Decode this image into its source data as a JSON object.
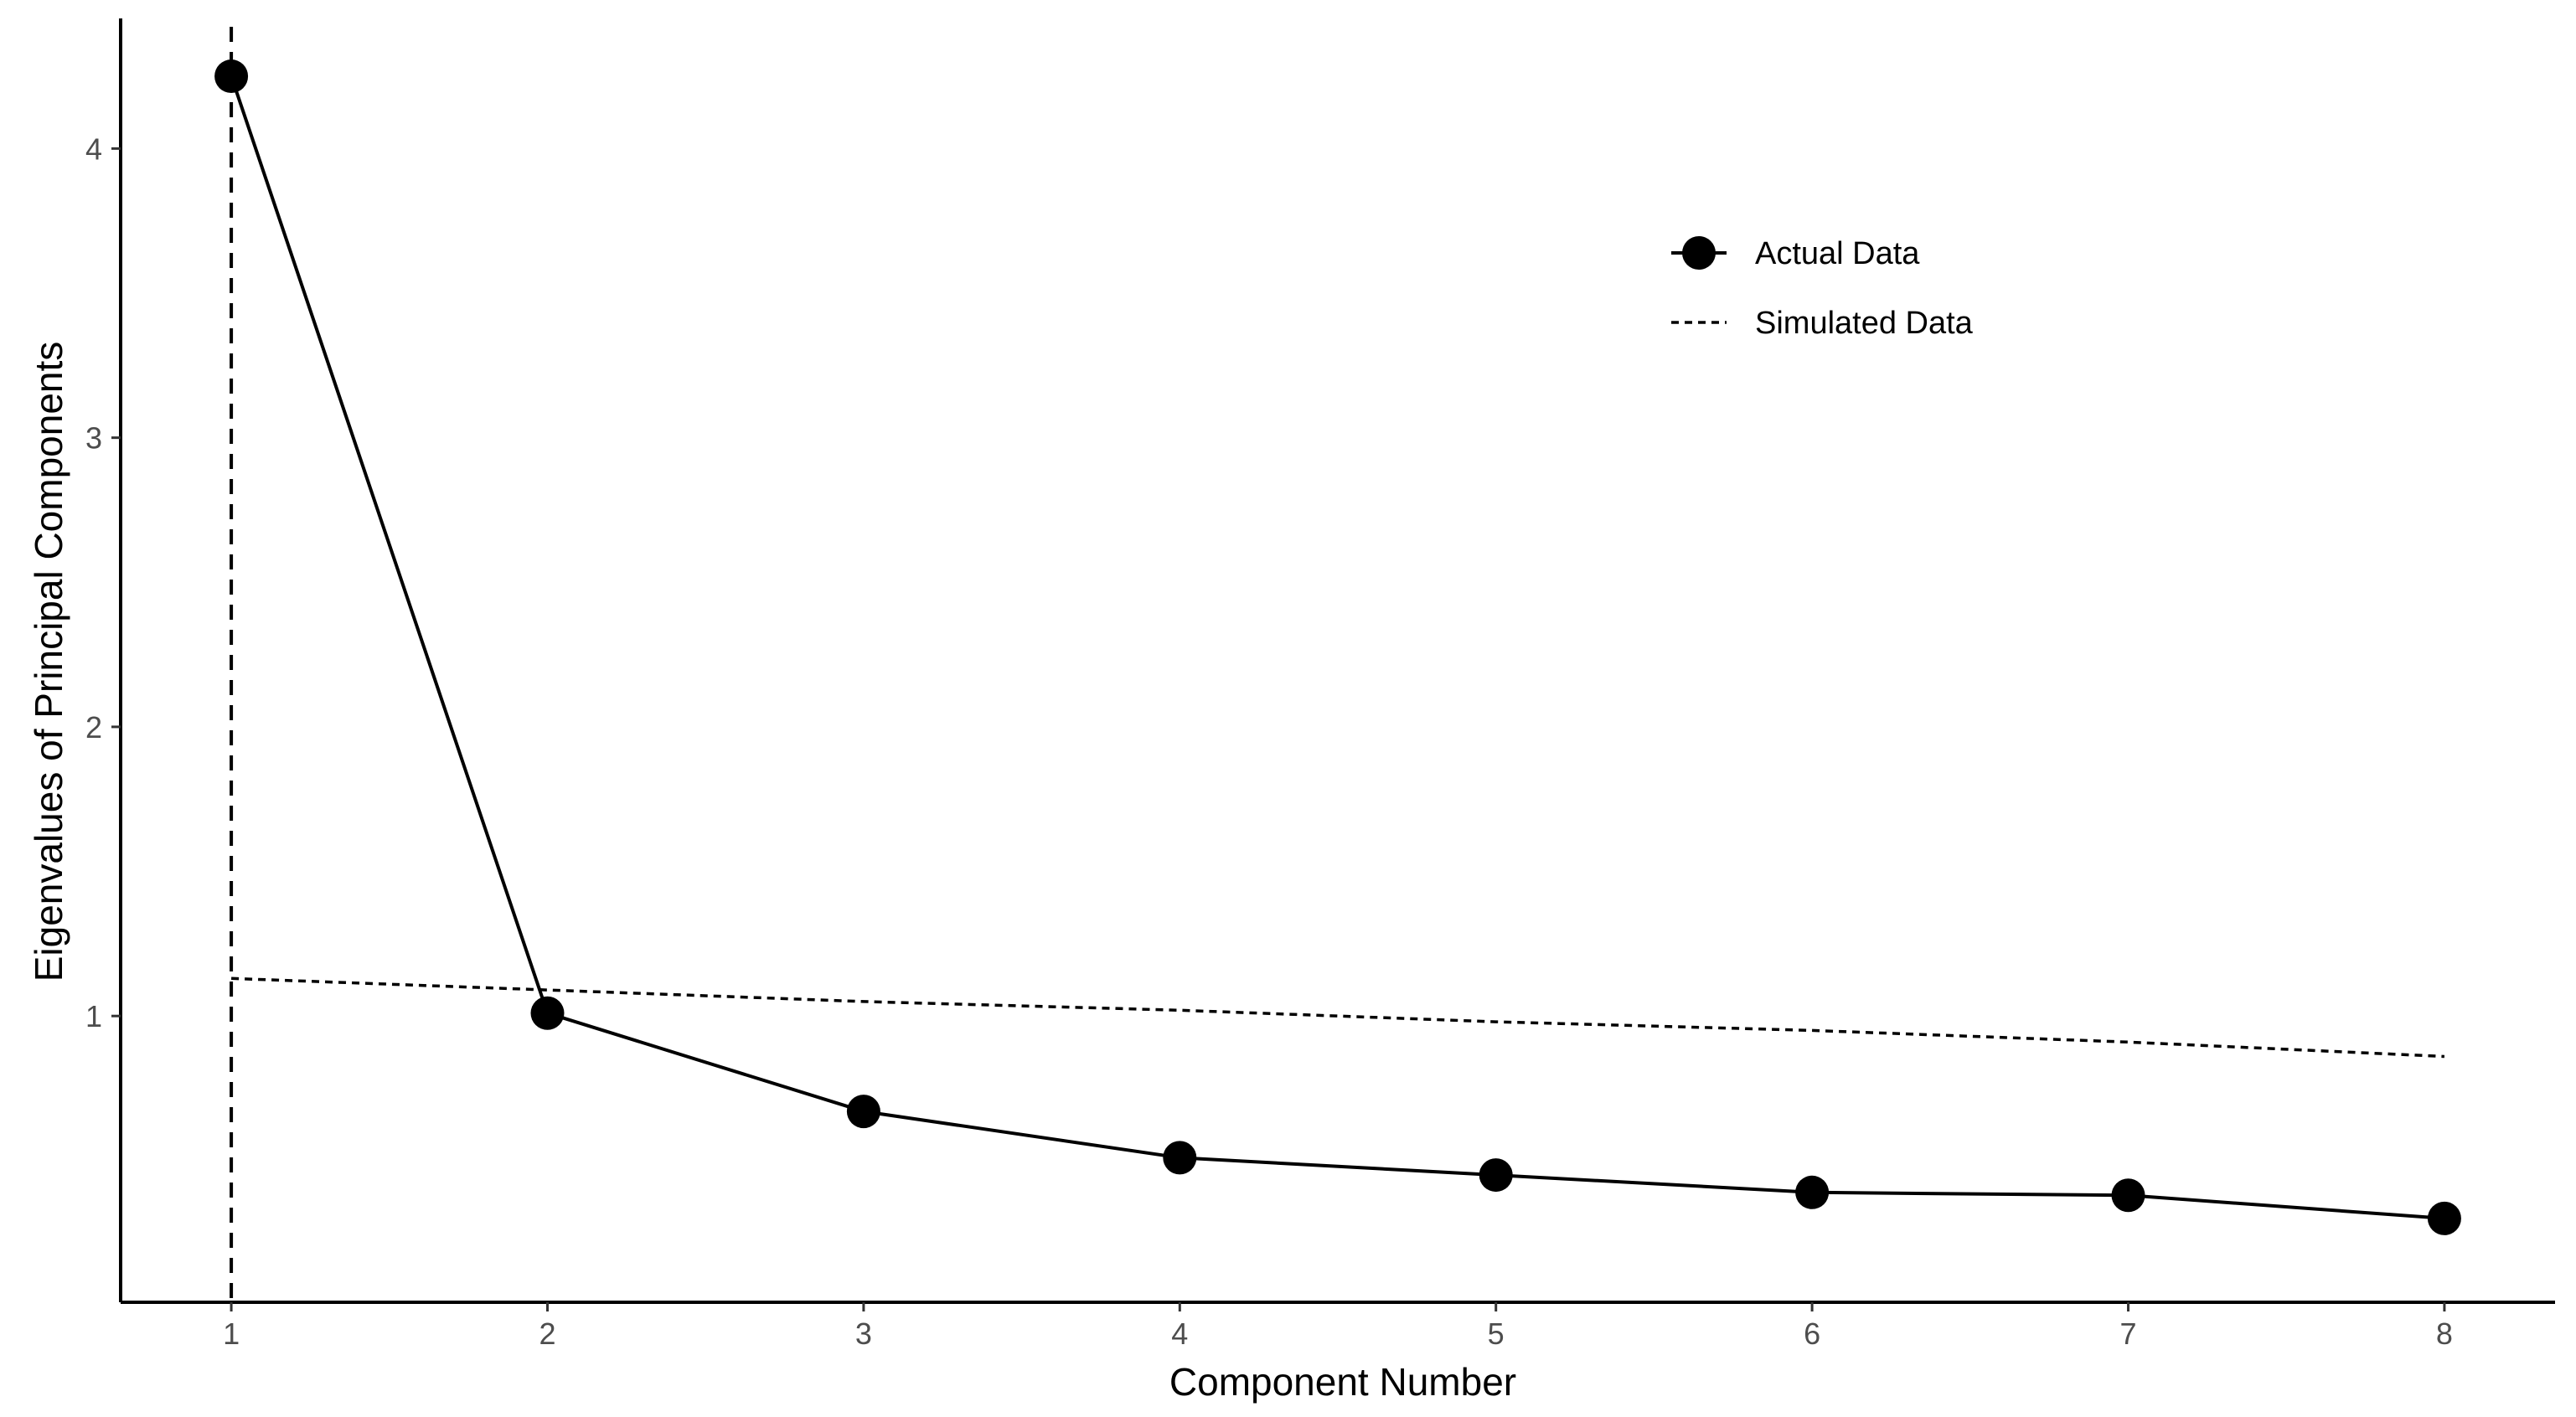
{
  "chart_data": {
    "type": "line",
    "xlabel": "Component Number",
    "ylabel": "Eigenvalues of Principal Components",
    "xlim": [
      0.65,
      8.35
    ],
    "ylim": [
      0.01,
      4.45
    ],
    "x_ticks": [
      1,
      2,
      3,
      4,
      5,
      6,
      7,
      8
    ],
    "y_ticks": [
      1,
      2,
      3,
      4
    ],
    "grid": false,
    "legend_position": "top-right",
    "reference_line": {
      "x": 1,
      "style": "dashed"
    },
    "series": [
      {
        "name": "Actual Data",
        "style": "solid line with points",
        "x": [
          1,
          2,
          3,
          4,
          5,
          6,
          7,
          8
        ],
        "values": [
          4.25,
          1.01,
          0.67,
          0.51,
          0.45,
          0.39,
          0.38,
          0.3
        ]
      },
      {
        "name": "Simulated Data",
        "style": "dotted line",
        "x": [
          1,
          2,
          3,
          4,
          5,
          6,
          7,
          8
        ],
        "values": [
          1.13,
          1.09,
          1.05,
          1.02,
          0.98,
          0.95,
          0.91,
          0.86
        ]
      }
    ],
    "colors": {
      "line": "#000000",
      "axis": "#000000",
      "tick_label": "#4d4d4d"
    }
  }
}
